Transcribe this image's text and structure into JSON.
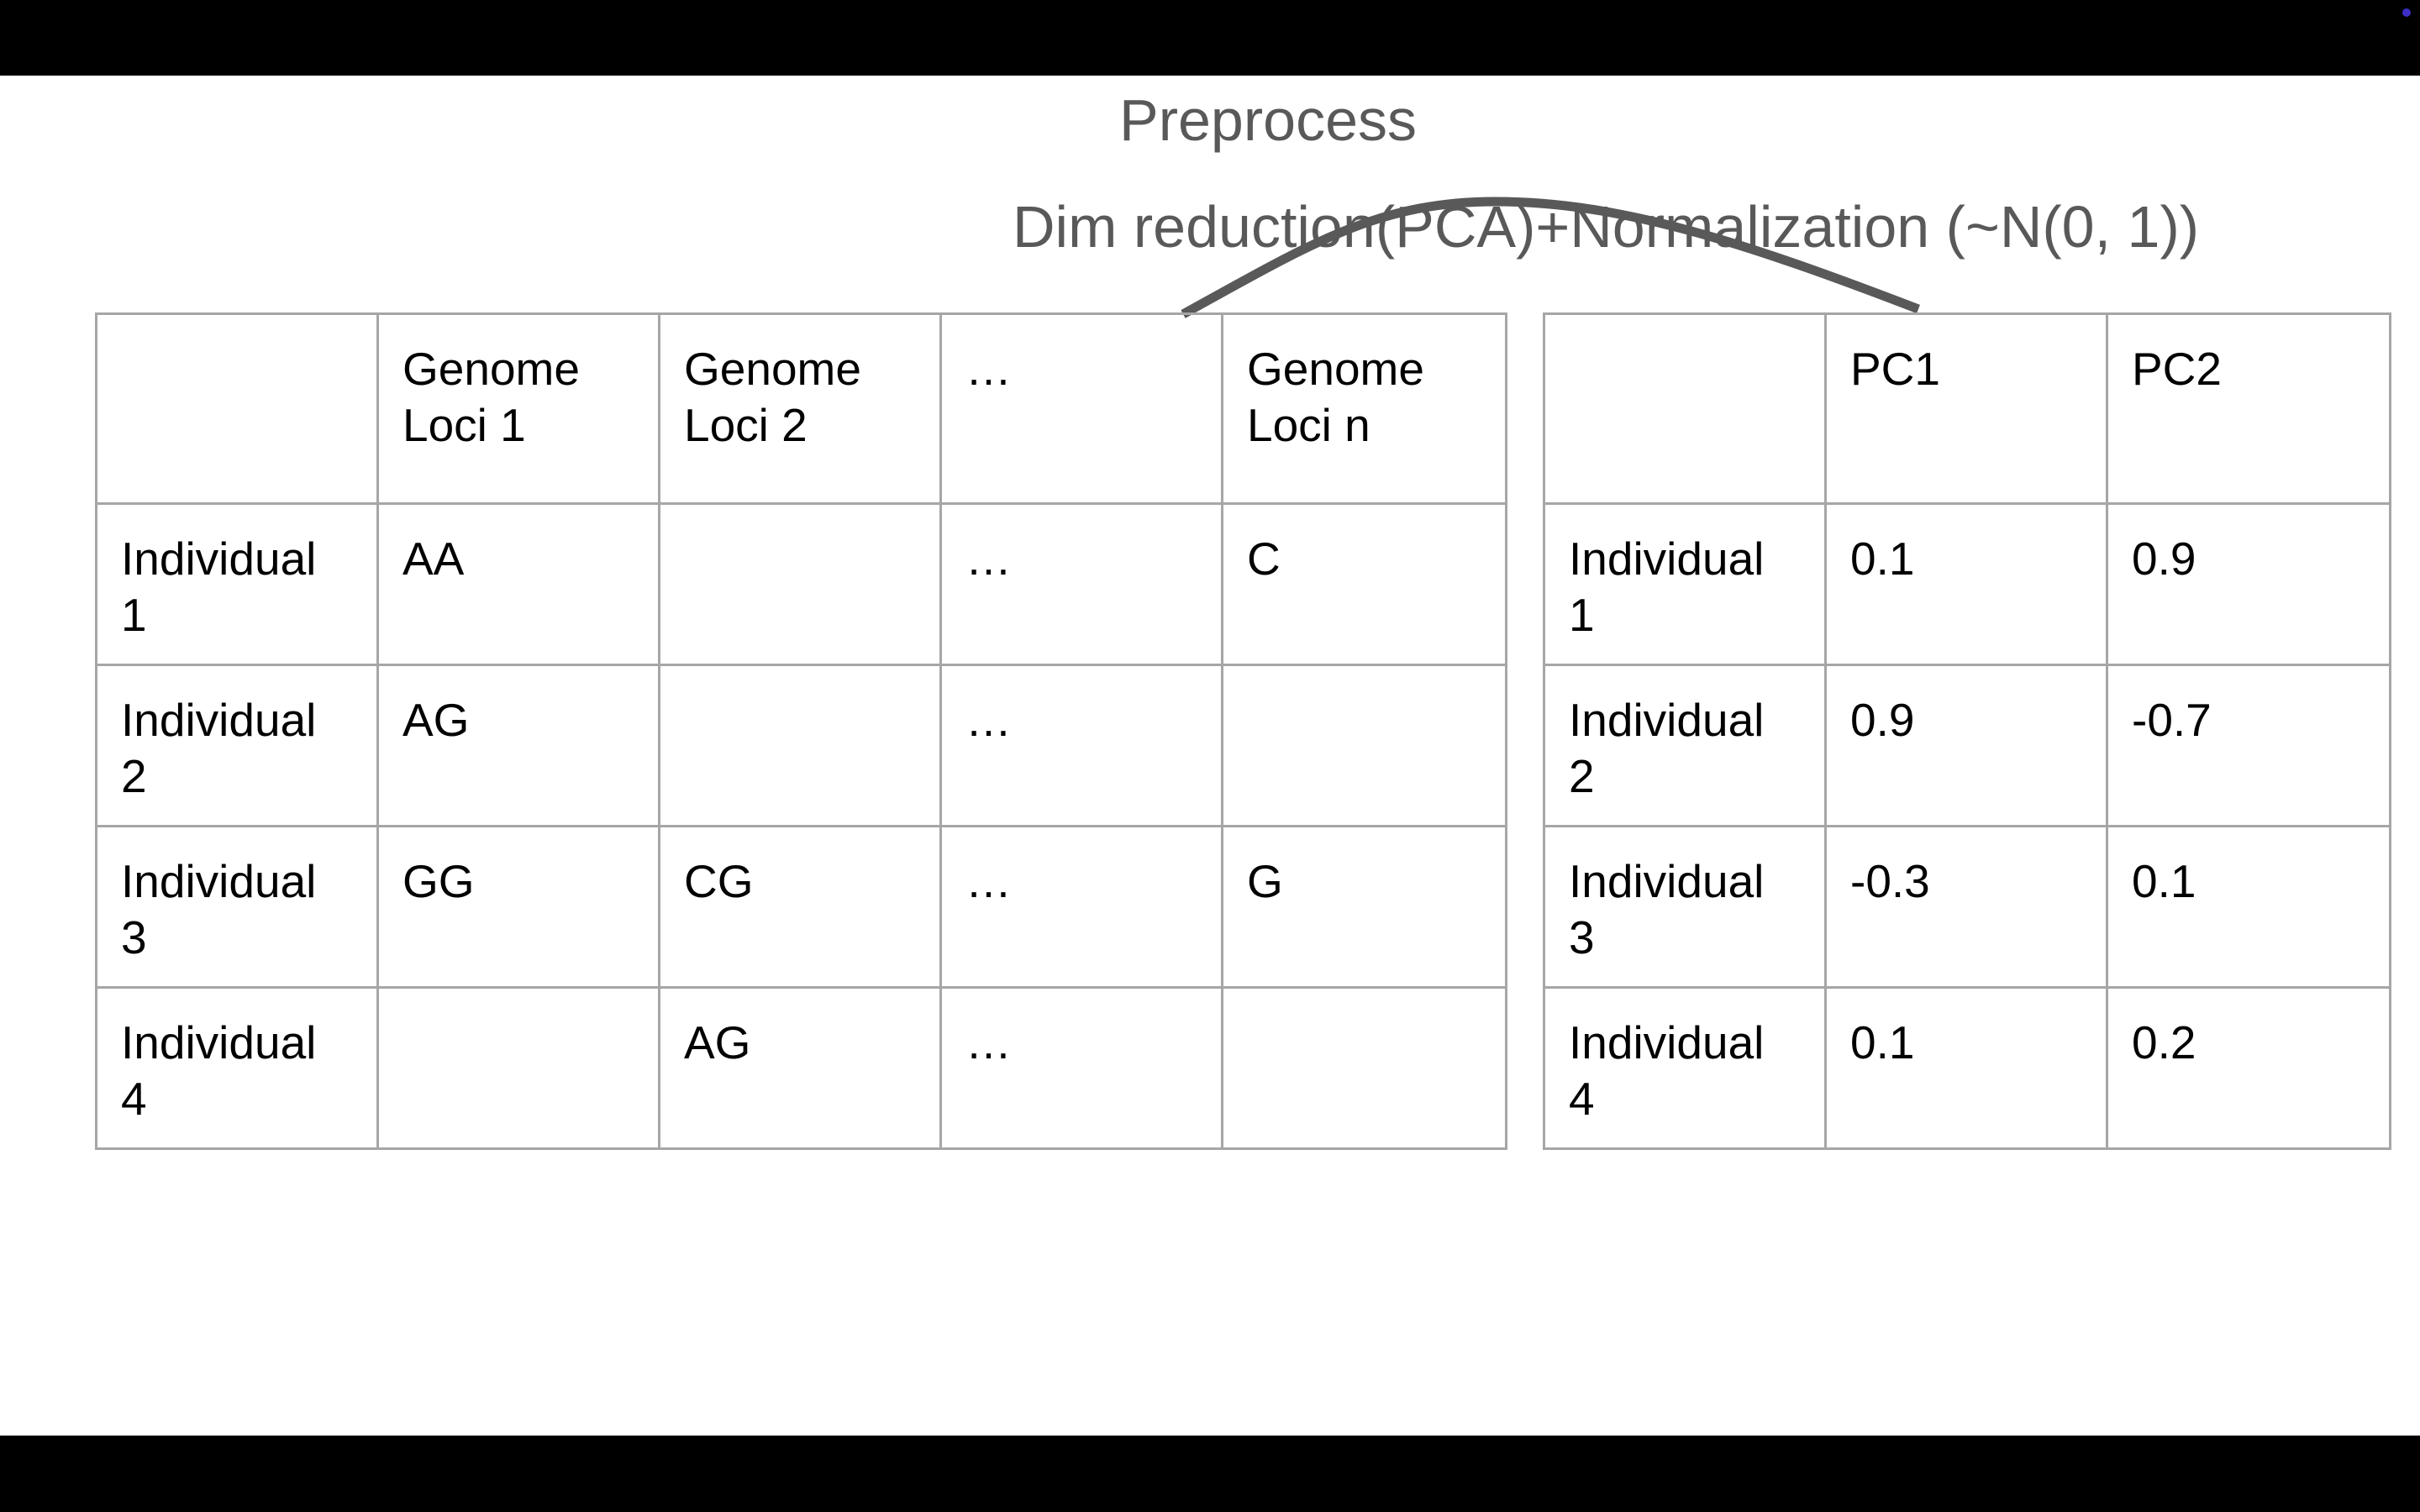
{
  "title": "Preprocess",
  "subtitle": "Dim reduction(PCA)+Normalization (~N(0, 1))",
  "colors": {
    "text_title": "#595959",
    "arc": "#595959",
    "border": "#a6a6a6",
    "background": "#ffffff",
    "frame": "#000000",
    "cursor_dot": "#3d2fc6"
  },
  "table_left": {
    "headers": [
      "",
      "Genome\nLoci 1",
      "Genome\nLoci 2",
      "…",
      "Genome\nLoci n"
    ],
    "rows": [
      [
        "Individual\n1",
        "AA",
        "",
        "…",
        "C"
      ],
      [
        "Individual\n2",
        "AG",
        "",
        "…",
        ""
      ],
      [
        "Individual\n3",
        "GG",
        "CG",
        "…",
        "G"
      ],
      [
        "Individual\n4",
        "",
        "AG",
        "…",
        ""
      ]
    ]
  },
  "table_right": {
    "headers": [
      "",
      "PC1",
      "PC2"
    ],
    "rows": [
      [
        "Individual\n1",
        "0.1",
        "0.9"
      ],
      [
        "Individual\n2",
        "0.9",
        "-0.7"
      ],
      [
        "Individual\n3",
        "-0.3",
        "0.1"
      ],
      [
        "Individual\n4",
        "0.1",
        "0.2"
      ]
    ]
  }
}
